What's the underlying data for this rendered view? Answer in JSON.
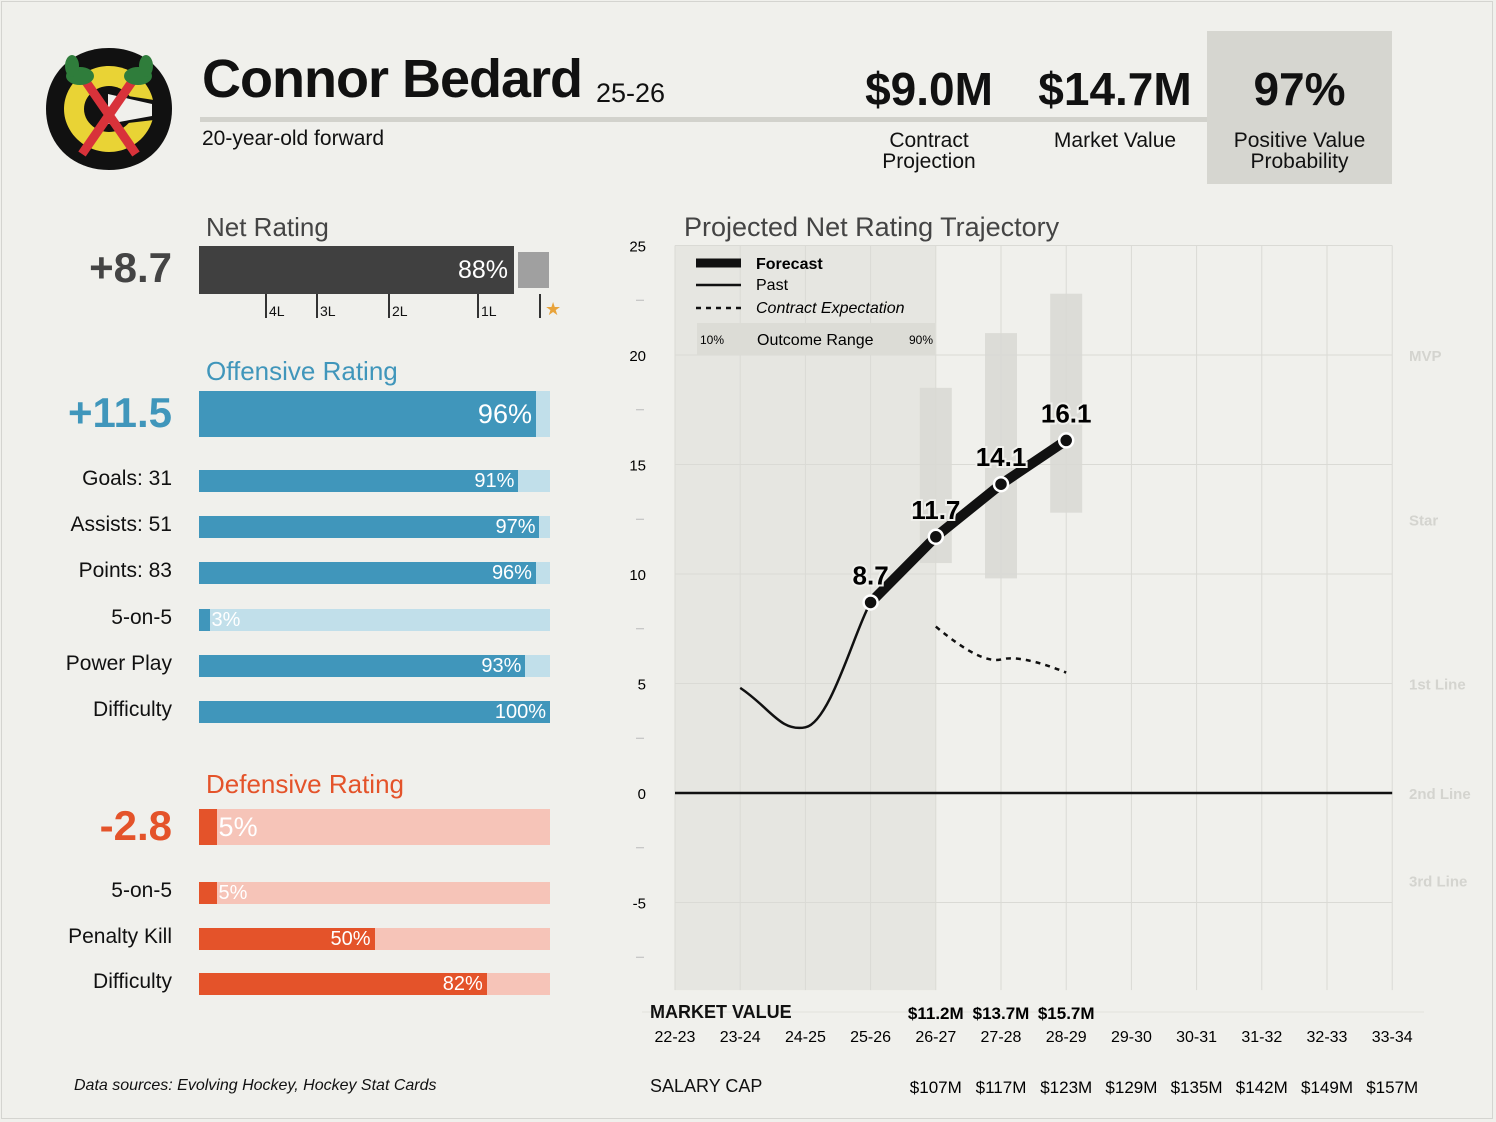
{
  "player": {
    "name": "Connor Bedard",
    "season": "25-26",
    "subtitle": "20-year-old forward"
  },
  "headline_stats": [
    {
      "value": "$9.0M",
      "label": "Contract Projection"
    },
    {
      "value": "$14.7M",
      "label": "Market Value"
    },
    {
      "value": "97%",
      "label": "Positive Value Probability"
    }
  ],
  "net_rating": {
    "title": "Net Rating",
    "value": "+8.7",
    "percentile": 88,
    "percentile_label": "88%",
    "ticks": [
      "4L",
      "3L",
      "2L",
      "1L"
    ],
    "star": "★",
    "colors": {
      "fill": "#404040",
      "track": "#a0a0a0"
    }
  },
  "offensive": {
    "title": "Offensive Rating",
    "value": "+11.5",
    "percentile": 96,
    "percentile_label": "96%",
    "colors": {
      "fill": "#4096bb",
      "track": "#c1dfea"
    },
    "rows": [
      {
        "label": "Goals: 31",
        "pct": 91,
        "pct_label": "91%"
      },
      {
        "label": "Assists: 51",
        "pct": 97,
        "pct_label": "97%"
      },
      {
        "label": "Points: 83",
        "pct": 96,
        "pct_label": "96%"
      },
      {
        "label": "5-on-5",
        "pct": 3,
        "pct_label": "3%"
      },
      {
        "label": "Power Play",
        "pct": 93,
        "pct_label": "93%"
      },
      {
        "label": "Difficulty",
        "pct": 100,
        "pct_label": "100%"
      }
    ]
  },
  "defensive": {
    "title": "Defensive Rating",
    "value": "-2.8",
    "percentile": 5,
    "percentile_label": "5%",
    "colors": {
      "fill": "#e4532a",
      "track": "#f6c4b8"
    },
    "rows": [
      {
        "label": "5-on-5",
        "pct": 5,
        "pct_label": "5%"
      },
      {
        "label": "Penalty Kill",
        "pct": 50,
        "pct_label": "50%"
      },
      {
        "label": "Difficulty",
        "pct": 82,
        "pct_label": "82%"
      }
    ]
  },
  "chart_data": {
    "type": "line",
    "title": "Projected Net Rating Trajectory",
    "x": [
      "22-23",
      "23-24",
      "24-25",
      "25-26",
      "26-27",
      "27-28",
      "28-29",
      "29-30",
      "30-31",
      "31-32",
      "32-33",
      "33-34"
    ],
    "ylim": [
      -9,
      25
    ],
    "yticks": [
      25,
      20,
      15,
      10,
      5,
      0,
      -5
    ],
    "grid": true,
    "legend": {
      "placement": "top-left",
      "forecast": "Forecast",
      "past": "Past",
      "contract": "Contract Expectation",
      "range_lo": "10%",
      "range": "Outcome Range",
      "range_hi": "90%"
    },
    "tiers": [
      {
        "label": "MVP",
        "y": 20
      },
      {
        "label": "Star",
        "y": 12.5
      },
      {
        "label": "1st Line",
        "y": 5
      },
      {
        "label": "2nd Line",
        "y": 0
      },
      {
        "label": "3rd Line",
        "y": -4
      }
    ],
    "past": [
      {
        "x": "23-24",
        "y": 4.8
      },
      {
        "x": "24-25",
        "y": 3.0
      },
      {
        "x": "25-26",
        "y": 8.7
      }
    ],
    "forecast": [
      {
        "x": "25-26",
        "y": 8.7,
        "label": "8.7"
      },
      {
        "x": "26-27",
        "y": 11.7,
        "label": "11.7"
      },
      {
        "x": "27-28",
        "y": 14.1,
        "label": "14.1"
      },
      {
        "x": "28-29",
        "y": 16.1,
        "label": "16.1"
      }
    ],
    "contract_expectation": [
      {
        "x": "26-27",
        "y": 7.6
      },
      {
        "x": "27-28",
        "y": 6.1
      },
      {
        "x": "28-29",
        "y": 5.5
      }
    ],
    "outcome_range": [
      {
        "x": "26-27",
        "lo": 10.5,
        "hi": 18.5
      },
      {
        "x": "27-28",
        "lo": 9.8,
        "hi": 21.0
      },
      {
        "x": "28-29",
        "lo": 12.8,
        "hi": 22.8
      }
    ],
    "market_value_label": "MARKET VALUE",
    "market_values": [
      {
        "x": "26-27",
        "value": "$11.2M"
      },
      {
        "x": "27-28",
        "value": "$13.7M"
      },
      {
        "x": "28-29",
        "value": "$15.7M"
      }
    ],
    "salary_cap_label": "SALARY CAP",
    "salary_caps": [
      {
        "x": "26-27",
        "value": "$107M"
      },
      {
        "x": "27-28",
        "value": "$117M"
      },
      {
        "x": "28-29",
        "value": "$123M"
      },
      {
        "x": "29-30",
        "value": "$129M"
      },
      {
        "x": "30-31",
        "value": "$135M"
      },
      {
        "x": "31-32",
        "value": "$142M"
      },
      {
        "x": "32-33",
        "value": "$149M"
      },
      {
        "x": "33-34",
        "value": "$157M"
      }
    ]
  },
  "footer": {
    "sources": "Data sources: Evolving Hockey, Hockey Stat Cards"
  }
}
